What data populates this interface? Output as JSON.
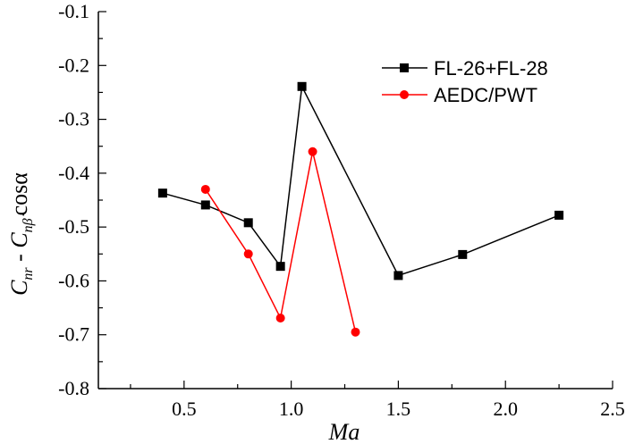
{
  "chart_data": {
    "type": "line",
    "title": "",
    "xlabel": "Ma",
    "ylabel": "C_nr - C_nβ̇ cosα",
    "ylabel_parts": {
      "c1": "C",
      "sub1": "nr",
      "minus": " - ",
      "c2": "C",
      "sub2": "nβ̇",
      "tail": "cosα"
    },
    "xlim": [
      0.1,
      2.5
    ],
    "ylim": [
      -0.8,
      -0.1
    ],
    "xticks": [
      0.5,
      1.0,
      1.5,
      2.0,
      2.5
    ],
    "xtick_labels": [
      "0.5",
      "1.0",
      "1.5",
      "2.0",
      "2.5"
    ],
    "yticks": [
      -0.8,
      -0.7,
      -0.6,
      -0.5,
      -0.4,
      -0.3,
      -0.2,
      -0.1
    ],
    "ytick_labels": [
      "-0.8",
      "-0.7",
      "-0.6",
      "-0.5",
      "-0.4",
      "-0.3",
      "-0.2",
      "-0.1"
    ],
    "grid": false,
    "legend_position": "top-right",
    "series": [
      {
        "name": "FL-26+FL-28",
        "color": "#000000",
        "marker": "square",
        "x": [
          0.4,
          0.6,
          0.8,
          0.95,
          1.05,
          1.5,
          1.8,
          2.25
        ],
        "values": [
          -0.437,
          -0.459,
          -0.492,
          -0.573,
          -0.239,
          -0.59,
          -0.551,
          -0.478
        ]
      },
      {
        "name": "AEDC/PWT",
        "color": "#ff0000",
        "marker": "circle",
        "x": [
          0.6,
          0.8,
          0.95,
          1.1,
          1.3
        ],
        "values": [
          -0.43,
          -0.55,
          -0.669,
          -0.36,
          -0.695
        ]
      }
    ]
  }
}
